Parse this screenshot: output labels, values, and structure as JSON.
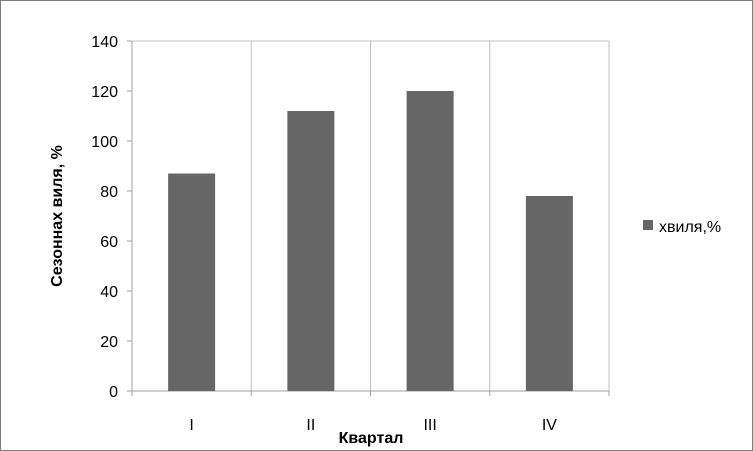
{
  "chart_data": {
    "type": "bar",
    "categories": [
      "I",
      "II",
      "III",
      "IV"
    ],
    "series": [
      {
        "name": "хвиля,%",
        "values": [
          87,
          112,
          120,
          78
        ]
      }
    ],
    "title": "",
    "xlabel": "Квартал",
    "ylabel": "Сезоннах виля, %",
    "ylim": [
      0,
      140
    ],
    "yticks": [
      0,
      20,
      40,
      60,
      80,
      100,
      120,
      140
    ],
    "grid": "vertical",
    "legend": "right"
  },
  "colors": {
    "bar": "#666666",
    "grid": "#c0c0c0",
    "axis": "#a0a0a0",
    "frame": "#7f7f7f"
  }
}
